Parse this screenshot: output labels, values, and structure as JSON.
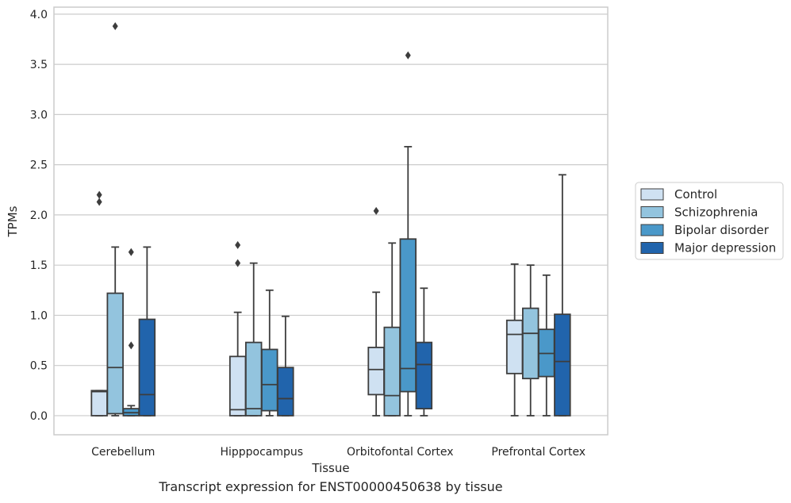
{
  "chart_data": {
    "type": "boxplot",
    "xlabel": "Tissue",
    "ylabel": "TPMs",
    "ylim": [
      -0.19,
      4.07
    ],
    "y_ticks": [
      0.0,
      0.5,
      1.0,
      1.5,
      2.0,
      2.5,
      3.0,
      3.5,
      4.0
    ],
    "y_tick_labels": [
      "0.0",
      "0.5",
      "1.0",
      "1.5",
      "2.0",
      "2.5",
      "3.0",
      "3.5",
      "4.0"
    ],
    "grid": "horizontal",
    "legend_position": "right",
    "categories": [
      "Cerebellum",
      "Hipppocampus",
      "Orbitofontal Cortex",
      "Prefrontal Cortex"
    ],
    "series": [
      {
        "name": "Control",
        "color": "#cfe1f2",
        "boxes": [
          {
            "whislo": 0.0,
            "q1": 0.0,
            "med": 0.24,
            "q3": 0.25,
            "whishi": 0.25,
            "fliers": [
              2.13,
              2.2
            ]
          },
          {
            "whislo": 0.0,
            "q1": 0.0,
            "med": 0.06,
            "q3": 0.59,
            "whishi": 1.03,
            "fliers": [
              1.52,
              1.7
            ]
          },
          {
            "whislo": 0.0,
            "q1": 0.21,
            "med": 0.46,
            "q3": 0.68,
            "whishi": 1.23,
            "fliers": [
              2.04
            ]
          },
          {
            "whislo": 0.0,
            "q1": 0.42,
            "med": 0.81,
            "q3": 0.95,
            "whishi": 1.51,
            "fliers": []
          }
        ]
      },
      {
        "name": "Schizophrenia",
        "color": "#93c4de",
        "boxes": [
          {
            "whislo": 0.0,
            "q1": 0.02,
            "med": 0.48,
            "q3": 1.22,
            "whishi": 1.68,
            "fliers": [
              3.88
            ]
          },
          {
            "whislo": 0.0,
            "q1": 0.0,
            "med": 0.07,
            "q3": 0.73,
            "whishi": 1.52,
            "fliers": []
          },
          {
            "whislo": 0.0,
            "q1": 0.0,
            "med": 0.2,
            "q3": 0.88,
            "whishi": 1.72,
            "fliers": []
          },
          {
            "whislo": 0.0,
            "q1": 0.37,
            "med": 0.82,
            "q3": 1.07,
            "whishi": 1.5,
            "fliers": []
          }
        ]
      },
      {
        "name": "Bipolar disorder",
        "color": "#4a98c9",
        "boxes": [
          {
            "whislo": 0.0,
            "q1": 0.0,
            "med": 0.03,
            "q3": 0.07,
            "whishi": 0.1,
            "fliers": [
              0.7,
              1.63
            ]
          },
          {
            "whislo": 0.0,
            "q1": 0.05,
            "med": 0.31,
            "q3": 0.66,
            "whishi": 1.25,
            "fliers": []
          },
          {
            "whislo": 0.0,
            "q1": 0.24,
            "med": 0.47,
            "q3": 1.76,
            "whishi": 2.68,
            "fliers": [
              3.59
            ]
          },
          {
            "whislo": 0.0,
            "q1": 0.39,
            "med": 0.62,
            "q3": 0.86,
            "whishi": 1.4,
            "fliers": []
          }
        ]
      },
      {
        "name": "Major depression",
        "color": "#2164ac",
        "boxes": [
          {
            "whislo": 0.0,
            "q1": 0.0,
            "med": 0.21,
            "q3": 0.96,
            "whishi": 1.68,
            "fliers": []
          },
          {
            "whislo": 0.0,
            "q1": 0.0,
            "med": 0.17,
            "q3": 0.48,
            "whishi": 0.99,
            "fliers": []
          },
          {
            "whislo": 0.0,
            "q1": 0.07,
            "med": 0.51,
            "q3": 0.73,
            "whishi": 1.27,
            "fliers": []
          },
          {
            "whislo": 0.0,
            "q1": 0.0,
            "med": 0.54,
            "q3": 1.01,
            "whishi": 2.4,
            "fliers": []
          }
        ]
      }
    ],
    "caption": "Transcript expression for ENST00000450638 by tissue"
  }
}
